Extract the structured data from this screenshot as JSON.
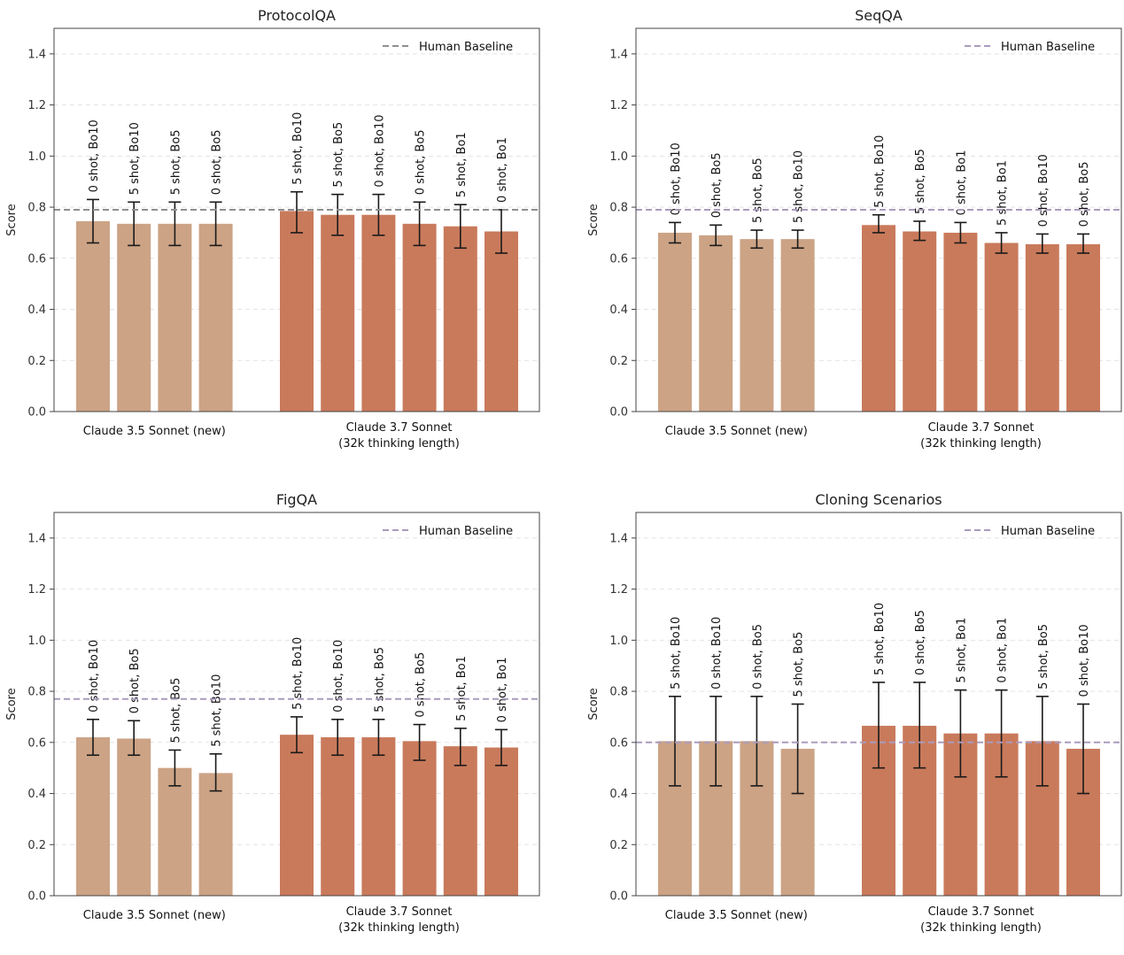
{
  "colors": {
    "sonnet35": "#cca385",
    "sonnet37": "#c97a5b",
    "grid": "#e3e3e3",
    "frame": "#444444",
    "baseline_gray": "#8f8f8f",
    "baseline_purple": "#a99bbd",
    "error_bar": "#1a1a1a"
  },
  "chart_data": [
    {
      "type": "bar",
      "title": "ProtocolQA",
      "ylabel": "Score",
      "ylim": [
        0,
        1.5
      ],
      "yticks": [
        "0.0",
        "0.2",
        "0.4",
        "0.6",
        "0.8",
        "1.0",
        "1.2",
        "1.4"
      ],
      "legend": {
        "label": "Human Baseline",
        "position": "top-right"
      },
      "baseline": {
        "value": 0.79,
        "color": "gray"
      },
      "groups": [
        {
          "name": "Claude 3.5 Sonnet (new)",
          "name_line2": "",
          "bars": [
            {
              "label": "0 shot, Bo10",
              "value": 0.745,
              "err_low": 0.66,
              "err_high": 0.83
            },
            {
              "label": "5 shot, Bo10",
              "value": 0.735,
              "err_low": 0.65,
              "err_high": 0.82
            },
            {
              "label": "5 shot, Bo5",
              "value": 0.735,
              "err_low": 0.65,
              "err_high": 0.82
            },
            {
              "label": "0 shot, Bo5",
              "value": 0.735,
              "err_low": 0.65,
              "err_high": 0.82
            }
          ]
        },
        {
          "name": "Claude 3.7 Sonnet",
          "name_line2": "(32k thinking length)",
          "bars": [
            {
              "label": "5 shot, Bo10",
              "value": 0.785,
              "err_low": 0.7,
              "err_high": 0.86
            },
            {
              "label": "5 shot, Bo5",
              "value": 0.77,
              "err_low": 0.69,
              "err_high": 0.85
            },
            {
              "label": "0 shot, Bo10",
              "value": 0.77,
              "err_low": 0.69,
              "err_high": 0.85
            },
            {
              "label": "0 shot, Bo5",
              "value": 0.735,
              "err_low": 0.65,
              "err_high": 0.82
            },
            {
              "label": "5 shot, Bo1",
              "value": 0.725,
              "err_low": 0.64,
              "err_high": 0.81
            },
            {
              "label": "0 shot, Bo1",
              "value": 0.705,
              "err_low": 0.62,
              "err_high": 0.79
            }
          ]
        }
      ]
    },
    {
      "type": "bar",
      "title": "SeqQA",
      "ylabel": "Score",
      "ylim": [
        0,
        1.5
      ],
      "yticks": [
        "0.0",
        "0.2",
        "0.4",
        "0.6",
        "0.8",
        "1.0",
        "1.2",
        "1.4"
      ],
      "legend": {
        "label": "Human Baseline",
        "position": "top-right"
      },
      "baseline": {
        "value": 0.79,
        "color": "purple"
      },
      "groups": [
        {
          "name": "Claude 3.5 Sonnet (new)",
          "name_line2": "",
          "bars": [
            {
              "label": "0 shot, Bo10",
              "value": 0.7,
              "err_low": 0.66,
              "err_high": 0.74
            },
            {
              "label": "0 shot, Bo5",
              "value": 0.69,
              "err_low": 0.65,
              "err_high": 0.73
            },
            {
              "label": "5 shot, Bo5",
              "value": 0.675,
              "err_low": 0.64,
              "err_high": 0.71
            },
            {
              "label": "5 shot, Bo10",
              "value": 0.675,
              "err_low": 0.64,
              "err_high": 0.71
            }
          ]
        },
        {
          "name": "Claude 3.7 Sonnet",
          "name_line2": "(32k thinking length)",
          "bars": [
            {
              "label": "5 shot, Bo10",
              "value": 0.73,
              "err_low": 0.7,
              "err_high": 0.77
            },
            {
              "label": "5 shot, Bo5",
              "value": 0.705,
              "err_low": 0.67,
              "err_high": 0.745
            },
            {
              "label": "0 shot, Bo1",
              "value": 0.7,
              "err_low": 0.66,
              "err_high": 0.74
            },
            {
              "label": "5 shot, Bo1",
              "value": 0.66,
              "err_low": 0.62,
              "err_high": 0.7
            },
            {
              "label": "0 shot, Bo10",
              "value": 0.655,
              "err_low": 0.62,
              "err_high": 0.695
            },
            {
              "label": "0 shot, Bo5",
              "value": 0.655,
              "err_low": 0.62,
              "err_high": 0.695
            }
          ]
        }
      ]
    },
    {
      "type": "bar",
      "title": "FigQA",
      "ylabel": "Score",
      "ylim": [
        0,
        1.5
      ],
      "yticks": [
        "0.0",
        "0.2",
        "0.4",
        "0.6",
        "0.8",
        "1.0",
        "1.2",
        "1.4"
      ],
      "legend": {
        "label": "Human Baseline",
        "position": "top-right"
      },
      "baseline": {
        "value": 0.77,
        "color": "purple"
      },
      "groups": [
        {
          "name": "Claude 3.5 Sonnet (new)",
          "name_line2": "",
          "bars": [
            {
              "label": "0 shot, Bo10",
              "value": 0.62,
              "err_low": 0.55,
              "err_high": 0.69
            },
            {
              "label": "0 shot, Bo5",
              "value": 0.615,
              "err_low": 0.55,
              "err_high": 0.685
            },
            {
              "label": "5 shot, Bo5",
              "value": 0.5,
              "err_low": 0.43,
              "err_high": 0.57
            },
            {
              "label": "5 shot, Bo10",
              "value": 0.48,
              "err_low": 0.41,
              "err_high": 0.555
            }
          ]
        },
        {
          "name": "Claude 3.7 Sonnet",
          "name_line2": "(32k thinking length)",
          "bars": [
            {
              "label": "5 shot, Bo10",
              "value": 0.63,
              "err_low": 0.56,
              "err_high": 0.7
            },
            {
              "label": "0 shot, Bo10",
              "value": 0.62,
              "err_low": 0.55,
              "err_high": 0.69
            },
            {
              "label": "5 shot, Bo5",
              "value": 0.62,
              "err_low": 0.55,
              "err_high": 0.69
            },
            {
              "label": "0 shot, Bo5",
              "value": 0.605,
              "err_low": 0.53,
              "err_high": 0.67
            },
            {
              "label": "5 shot, Bo1",
              "value": 0.585,
              "err_low": 0.51,
              "err_high": 0.655
            },
            {
              "label": "0 shot, Bo1",
              "value": 0.58,
              "err_low": 0.51,
              "err_high": 0.65
            }
          ]
        }
      ]
    },
    {
      "type": "bar",
      "title": "Cloning Scenarios",
      "ylabel": "Score",
      "ylim": [
        0,
        1.5
      ],
      "yticks": [
        "0.0",
        "0.2",
        "0.4",
        "0.6",
        "0.8",
        "1.0",
        "1.2",
        "1.4"
      ],
      "legend": {
        "label": "Human Baseline",
        "position": "top-right"
      },
      "baseline": {
        "value": 0.6,
        "color": "purple"
      },
      "groups": [
        {
          "name": "Claude 3.5 Sonnet (new)",
          "name_line2": "",
          "bars": [
            {
              "label": "5 shot, Bo10",
              "value": 0.605,
              "err_low": 0.43,
              "err_high": 0.78
            },
            {
              "label": "0 shot, Bo10",
              "value": 0.605,
              "err_low": 0.43,
              "err_high": 0.78
            },
            {
              "label": "0 shot, Bo5",
              "value": 0.605,
              "err_low": 0.43,
              "err_high": 0.78
            },
            {
              "label": "5 shot, Bo5",
              "value": 0.575,
              "err_low": 0.4,
              "err_high": 0.75
            }
          ]
        },
        {
          "name": "Claude 3.7 Sonnet",
          "name_line2": "(32k thinking length)",
          "bars": [
            {
              "label": "5 shot, Bo10",
              "value": 0.665,
              "err_low": 0.5,
              "err_high": 0.835
            },
            {
              "label": "0 shot, Bo5",
              "value": 0.665,
              "err_low": 0.5,
              "err_high": 0.835
            },
            {
              "label": "5 shot, Bo1",
              "value": 0.635,
              "err_low": 0.465,
              "err_high": 0.805
            },
            {
              "label": "0 shot, Bo1",
              "value": 0.635,
              "err_low": 0.465,
              "err_high": 0.805
            },
            {
              "label": "5 shot, Bo5",
              "value": 0.605,
              "err_low": 0.43,
              "err_high": 0.78
            },
            {
              "label": "0 shot, Bo10",
              "value": 0.575,
              "err_low": 0.4,
              "err_high": 0.75
            }
          ]
        }
      ]
    }
  ]
}
